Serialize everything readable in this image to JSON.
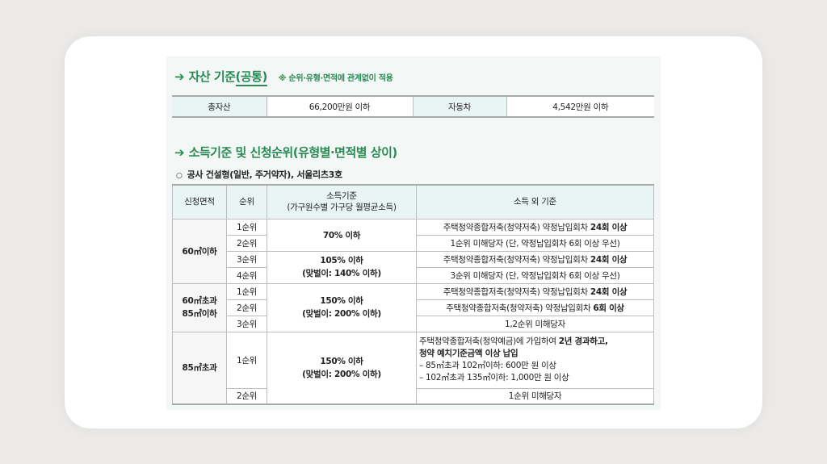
{
  "asset": {
    "title_prefix": "자산 기준",
    "title_underlined": "(공통)",
    "note": "※ 순위·유형·면적에 관계없이 적용",
    "total_label": "총자산",
    "total_value": "66,200만원 이하",
    "car_label": "자동차",
    "car_value": "4,542만원 이하"
  },
  "income": {
    "title": "소득기준 및 신청순위(유형별·면적별 상이)",
    "bullet": "○",
    "subtitle": "공사 건설형(일반, 주거약자), 서울리츠3호",
    "headers": {
      "area": "신청면적",
      "rank": "순위",
      "income_line1": "소득기준",
      "income_line2": "(가구원수별 가구당 월평균소득)",
      "other": "소득 외 기준"
    },
    "groups": [
      {
        "area": "60㎡이하",
        "income_a": "70% 이하",
        "income_b1": "105% 이하",
        "income_b2": "(맞벌이: 140% 이하)",
        "rows": [
          {
            "rank": "1순위",
            "text": "주택청약종합저축(청약저축) 약정납입회차 ",
            "bold": "24회 이상"
          },
          {
            "rank": "2순위",
            "text": "1순위 미해당자 (단, 약정납입회차 6회 이상 우선)"
          },
          {
            "rank": "3순위",
            "text": "주택청약종합저축(청약저축) 약정납입회차 ",
            "bold": "24회 이상"
          },
          {
            "rank": "4순위",
            "text": "3순위 미해당자 (단, 약정납입회차 6회 이상 우선)"
          }
        ]
      },
      {
        "area1": "60㎡초과",
        "area2": "85㎡이하",
        "income1": "150% 이하",
        "income2": "(맞벌이: 200% 이하)",
        "rows": [
          {
            "rank": "1순위",
            "text": "주택청약종합저축(청약저축) 약정납입회차 ",
            "bold": "24회 이상"
          },
          {
            "rank": "2순위",
            "text": "주택청약종합저축(청약저축) 약정납입회차 ",
            "bold": "6회 이상"
          },
          {
            "rank": "3순위",
            "text": "1,2순위 미해당자"
          }
        ]
      },
      {
        "area": "85㎡초과",
        "income1": "150% 이하",
        "income2": "(맞벌이: 200% 이하)",
        "rows": [
          {
            "rank": "1순위",
            "text": "주택청약종합저축(청약예금)에 가입하여 ",
            "bold": "2년 경과하고,",
            "bold2": "청약 예치기준금액 이상 납입",
            "line3": " – 85㎡초과 102㎡이하: 600만 원 이상",
            "line4": " – 102㎡초과 135㎡이하: 1,000만 원 이상"
          },
          {
            "rank": "2순위",
            "text": "1순위 미해당자"
          }
        ]
      }
    ]
  },
  "colors": {
    "accent": "#2a8a55",
    "header_bg": "#e8f5f4",
    "panel_bg": "#f3f8f7"
  }
}
